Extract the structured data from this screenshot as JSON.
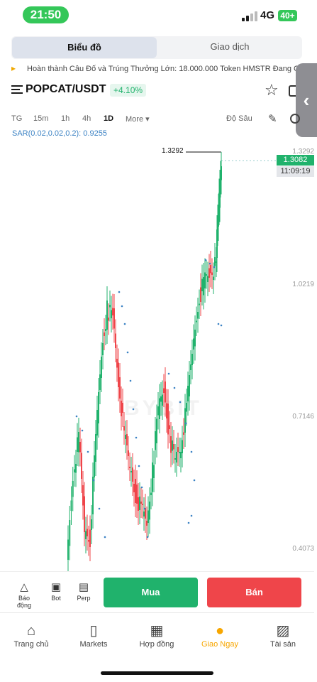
{
  "status": {
    "time": "21:50",
    "network": "4G",
    "battery": "40+"
  },
  "tabs": [
    {
      "label": "Biểu đồ"
    },
    {
      "label": "Giao dịch"
    }
  ],
  "announcement": "Hoàn thành Câu Đố và Trúng Thưởng Lớn: 18.000.000 Token HMSTR Đang C...",
  "symbol": {
    "pair": "POPCAT/USDT",
    "change": "+4.10%"
  },
  "timeframes": {
    "tg": "TG",
    "t15m": "15m",
    "t1h": "1h",
    "t4h": "4h",
    "t1d": "1D",
    "more": "More ▾",
    "depth": "Độ Sâu"
  },
  "indicator": "SAR(0.02,0.02,0.2): 0.9255",
  "chart": {
    "price_ticks": [
      "1.3292",
      "1.0219",
      "0.7146",
      "0.4073"
    ],
    "high_label": "1.3292",
    "last_price": "1.3082",
    "last_time": "11:09:19",
    "watermark": "BYBIT",
    "colors": {
      "up": "#20b26c",
      "down": "#ef454a",
      "sar": "#3b82c4"
    }
  },
  "actions": {
    "alert": "Báo động",
    "bot": "Bot",
    "perp": "Perp",
    "buy": "Mua",
    "sell": "Bán"
  },
  "nav": [
    {
      "label": "Trang chủ",
      "icon": "home-icon"
    },
    {
      "label": "Markets",
      "icon": "candles-icon"
    },
    {
      "label": "Hợp đồng",
      "icon": "contract-icon"
    },
    {
      "label": "Giao Ngay",
      "icon": "spot-icon"
    },
    {
      "label": "Tài sản",
      "icon": "wallet-icon"
    }
  ]
}
